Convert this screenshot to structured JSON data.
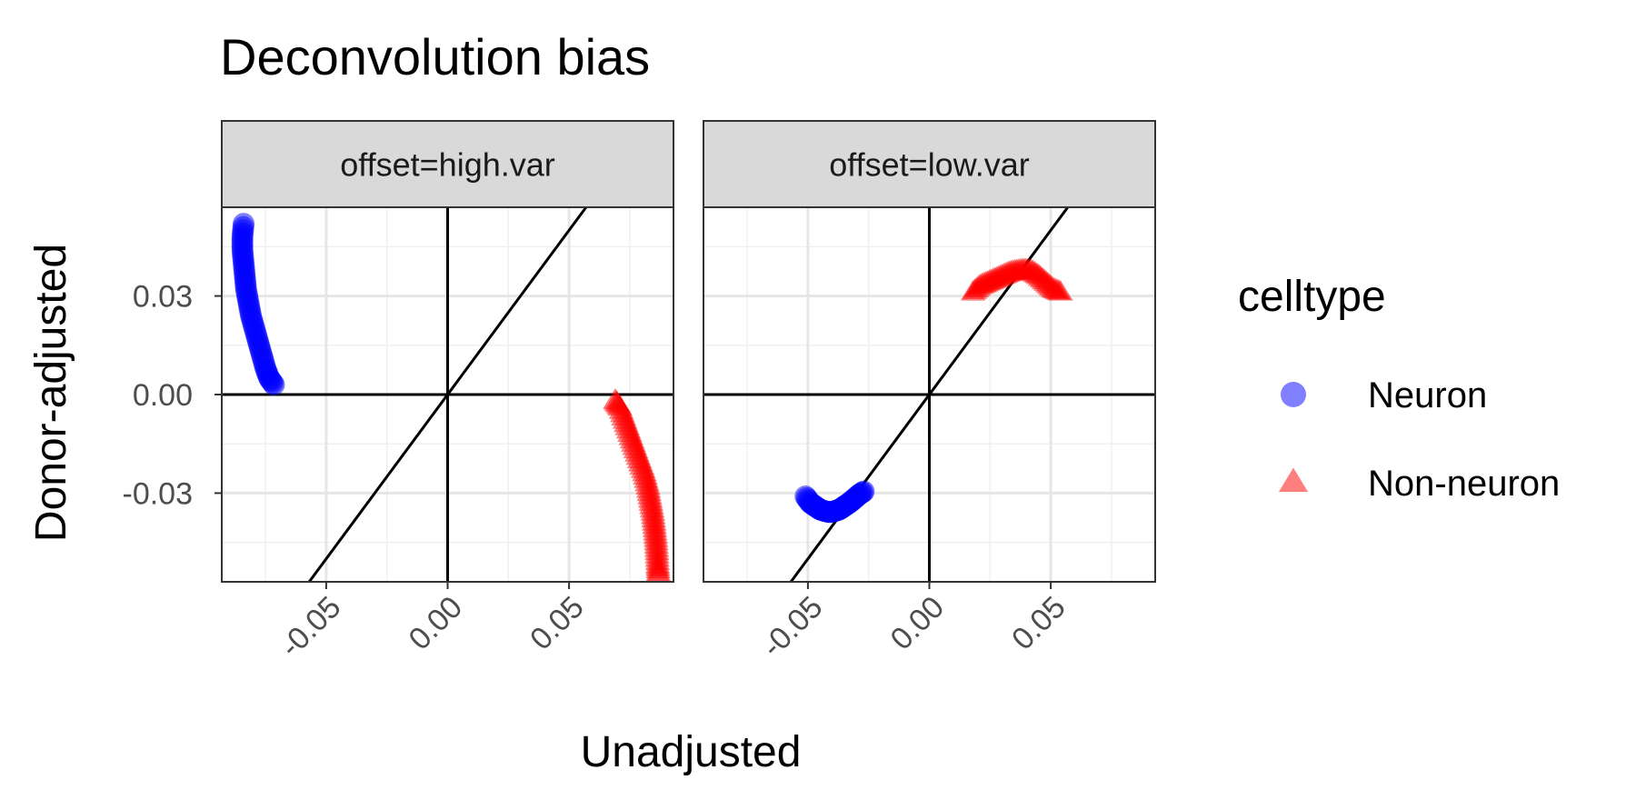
{
  "chart_data": {
    "type": "scatter",
    "title": "Deconvolution bias",
    "xlabel": "Unadjusted",
    "ylabel": "Donor-adjusted",
    "xlim": [
      -0.093,
      0.093
    ],
    "ylim": [
      -0.057,
      0.057
    ],
    "x_ticks": [
      -0.05,
      0.0,
      0.05
    ],
    "x_tick_labels": [
      "-0.05",
      "0.00",
      "0.05"
    ],
    "y_ticks": [
      -0.03,
      0.0,
      0.03
    ],
    "y_tick_labels": [
      "-0.03",
      "0.00",
      "0.03"
    ],
    "grid": true,
    "reference_lines": {
      "hline": 0,
      "vline": 0,
      "identity": true
    },
    "legend": {
      "title": "celltype",
      "position": "right",
      "entries": [
        {
          "label": "Neuron",
          "shape": "circle",
          "color": "#0000ff"
        },
        {
          "label": "Non-neuron",
          "shape": "triangle",
          "color": "#ff0000"
        }
      ]
    },
    "facets": [
      {
        "label": "offset=high.var",
        "series": [
          {
            "name": "Neuron",
            "points": [
              [
                -0.084,
                0.052
              ],
              [
                -0.0845,
                0.048
              ],
              [
                -0.0845,
                0.044
              ],
              [
                -0.084,
                0.04
              ],
              [
                -0.0835,
                0.036
              ],
              [
                -0.083,
                0.032
              ],
              [
                -0.082,
                0.028
              ],
              [
                -0.081,
                0.024
              ],
              [
                -0.0795,
                0.02
              ],
              [
                -0.078,
                0.016
              ],
              [
                -0.0765,
                0.012
              ],
              [
                -0.075,
                0.008
              ],
              [
                -0.0735,
                0.005
              ],
              [
                -0.0715,
                0.003
              ]
            ]
          },
          {
            "name": "Non-neuron",
            "points": [
              [
                0.069,
                -0.002
              ],
              [
                0.071,
                -0.004
              ],
              [
                0.073,
                -0.008
              ],
              [
                0.075,
                -0.012
              ],
              [
                0.077,
                -0.016
              ],
              [
                0.079,
                -0.02
              ],
              [
                0.081,
                -0.024
              ],
              [
                0.0825,
                -0.028
              ],
              [
                0.0835,
                -0.032
              ],
              [
                0.0845,
                -0.036
              ],
              [
                0.0852,
                -0.04
              ],
              [
                0.0858,
                -0.044
              ],
              [
                0.0862,
                -0.048
              ],
              [
                0.0865,
                -0.052
              ],
              [
                0.0868,
                -0.055
              ]
            ]
          }
        ]
      },
      {
        "label": "offset=low.var",
        "series": [
          {
            "name": "Neuron",
            "points": [
              [
                -0.051,
                -0.031
              ],
              [
                -0.049,
                -0.033
              ],
              [
                -0.047,
                -0.034
              ],
              [
                -0.045,
                -0.035
              ],
              [
                -0.043,
                -0.0355
              ],
              [
                -0.041,
                -0.0358
              ],
              [
                -0.039,
                -0.0355
              ],
              [
                -0.037,
                -0.035
              ],
              [
                -0.035,
                -0.034
              ],
              [
                -0.033,
                -0.033
              ],
              [
                -0.031,
                -0.0318
              ],
              [
                -0.029,
                -0.0305
              ],
              [
                -0.027,
                -0.0295
              ]
            ]
          },
          {
            "name": "Non-neuron",
            "points": [
              [
                0.018,
                0.031
              ],
              [
                0.021,
                0.033
              ],
              [
                0.024,
                0.034
              ],
              [
                0.027,
                0.035
              ],
              [
                0.03,
                0.036
              ],
              [
                0.033,
                0.037
              ],
              [
                0.036,
                0.0375
              ],
              [
                0.039,
                0.0378
              ],
              [
                0.042,
                0.0375
              ],
              [
                0.045,
                0.036
              ],
              [
                0.048,
                0.034
              ],
              [
                0.051,
                0.032
              ],
              [
                0.054,
                0.031
              ]
            ]
          }
        ]
      }
    ]
  }
}
